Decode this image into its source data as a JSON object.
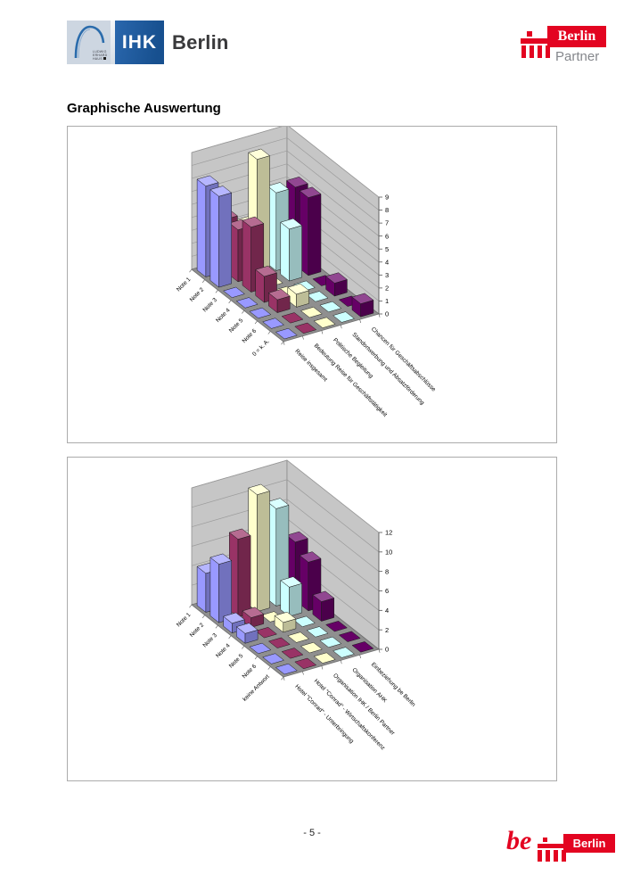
{
  "header": {
    "ihk_logo": {
      "house_caption": "LUDWIG ERHARD HAUS",
      "ihk_text": "IHK",
      "region_text": "Berlin",
      "blue": "#1c5592",
      "panel_gray": "#cdd6e1"
    },
    "partner_logo": {
      "box_text": "Berlin",
      "sub_text": "Partner",
      "red": "#e30421",
      "gray": "#85878c"
    }
  },
  "heading": "Graphische Auswertung",
  "chart_data": [
    {
      "type": "bar",
      "variant": "3d-column",
      "title": "",
      "categories": [
        "Note 1",
        "Note 2",
        "Note 3",
        "Note 4",
        "Note 5",
        "Note 6",
        "0 = k. A."
      ],
      "series": [
        {
          "name": "Reise insgesamt",
          "color": "#9999FF",
          "values": [
            7,
            7,
            0,
            0,
            0,
            0,
            0
          ]
        },
        {
          "name": "Bedeutung Reise für Geschäftstätigkeit",
          "color": "#993366",
          "values": [
            4,
            4,
            5,
            2,
            1,
            0,
            0
          ]
        },
        {
          "name": "Politische Begleitung",
          "color": "#FFFFCC",
          "values": [
            3,
            9,
            0,
            0,
            1,
            0,
            0
          ]
        },
        {
          "name": "Standortwerbung und Absatzförderung",
          "color": "#CCFFFF",
          "values": [
            3,
            6,
            4,
            0,
            0,
            0,
            0
          ]
        },
        {
          "name": "Chancen für Geschäftsabschlüsse",
          "color": "#660066",
          "values": [
            0,
            6,
            6,
            0,
            1,
            0,
            1
          ]
        }
      ],
      "ylim": [
        0,
        9
      ],
      "ytick_step": 1,
      "grid": true,
      "legend": "none",
      "wall_color": "#c6c6c6",
      "floor_color": "#8f8f8f"
    },
    {
      "type": "bar",
      "variant": "3d-column",
      "title": "",
      "categories": [
        "Note 1",
        "Note 2",
        "Note 3",
        "Note 4",
        "Note 5",
        "Note 6",
        "keine Antwort"
      ],
      "series": [
        {
          "name": "Hotel \"Conrad\" - Unterbringung",
          "color": "#9999FF",
          "values": [
            4,
            6,
            1,
            1,
            0,
            0,
            0
          ]
        },
        {
          "name": "Hotel \"Conrad\" - Wirtschaftskonferenz",
          "color": "#993366",
          "values": [
            3,
            8,
            1,
            0,
            0,
            0,
            0
          ]
        },
        {
          "name": "Organisation IHK / Berlin Partner",
          "color": "#FFFFCC",
          "values": [
            0,
            12,
            0,
            1,
            0,
            0,
            0
          ]
        },
        {
          "name": "Organisation AHK",
          "color": "#CCFFFF",
          "values": [
            0,
            10,
            3,
            0,
            0,
            0,
            0
          ]
        },
        {
          "name": "Einbeziehung be Berlin",
          "color": "#660066",
          "values": [
            0,
            6,
            5,
            2,
            0,
            0,
            0
          ]
        }
      ],
      "ylim": [
        0,
        12
      ],
      "ytick_step": 2,
      "grid": true,
      "legend": "none",
      "wall_color": "#c6c6c6",
      "floor_color": "#8f8f8f"
    }
  ],
  "footer": {
    "page_label": "- 5 -",
    "be_logo": {
      "be_text": "be",
      "box_text": "Berlin",
      "red": "#e30421"
    }
  }
}
